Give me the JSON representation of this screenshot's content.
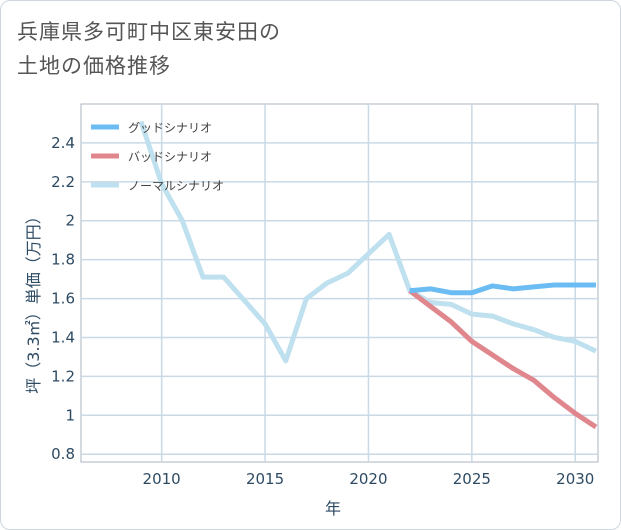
{
  "title_line1": "兵庫県多可町中区東安田の",
  "title_line2": "土地の価格推移",
  "chart_data": {
    "type": "line",
    "title": "兵庫県多可町中区東安田の土地の価格推移",
    "xlabel": "年",
    "ylabel": "坪（3.3㎡）単価（万円）",
    "xlim": [
      2006.1,
      2031.1
    ],
    "ylim": [
      0.76,
      2.6
    ],
    "xticks": [
      2010,
      2015,
      2020,
      2025,
      2030
    ],
    "xtick_labels": [
      "2010",
      "2015",
      "2020",
      "2025",
      "2030"
    ],
    "yticks": [
      0.8,
      1,
      1.2,
      1.4,
      1.6,
      1.8,
      2,
      2.2,
      2.4
    ],
    "ytick_labels": [
      "0.8",
      "1",
      "1.2",
      "1.4",
      "1.6",
      "1.8",
      "2",
      "2.2",
      "2.4"
    ],
    "grid": true,
    "legend_position": "top-left",
    "series": [
      {
        "name": "グッドシナリオ",
        "color": "#6bbcf2",
        "x": [
          2022,
          2023,
          2024,
          2025,
          2026,
          2027,
          2028,
          2029,
          2030,
          2031
        ],
        "values": [
          1.64,
          1.65,
          1.63,
          1.63,
          1.665,
          1.65,
          1.66,
          1.67,
          1.67,
          1.67
        ]
      },
      {
        "name": "バッドシナリオ",
        "color": "#e0878e",
        "x": [
          2022,
          2023,
          2024,
          2025,
          2026,
          2027,
          2028,
          2029,
          2030,
          2031
        ],
        "values": [
          1.64,
          1.56,
          1.48,
          1.38,
          1.31,
          1.24,
          1.18,
          1.09,
          1.01,
          0.94
        ]
      },
      {
        "name": "ノーマルシナリオ",
        "color": "#bfe0ee",
        "x": [
          2009,
          2010,
          2011,
          2012,
          2013,
          2014,
          2015,
          2016,
          2017,
          2018,
          2019,
          2020,
          2021,
          2022,
          2023,
          2024,
          2025,
          2026,
          2027,
          2028,
          2029,
          2030,
          2031
        ],
        "values": [
          2.51,
          2.19,
          2.0,
          1.71,
          1.71,
          1.59,
          1.47,
          1.28,
          1.6,
          1.68,
          1.73,
          1.83,
          1.93,
          1.64,
          1.58,
          1.57,
          1.52,
          1.51,
          1.47,
          1.44,
          1.4,
          1.38,
          1.33
        ]
      }
    ]
  }
}
